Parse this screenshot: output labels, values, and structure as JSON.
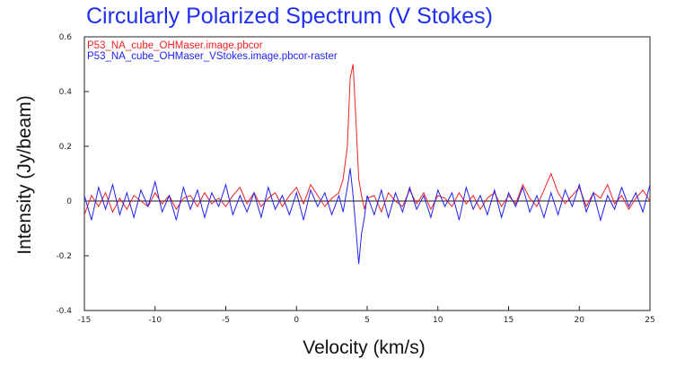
{
  "chart_data": {
    "type": "line",
    "title": "Circularly Polarized Spectrum (V Stokes)",
    "xlabel": "Velocity (km/s)",
    "ylabel": "Intensity (Jy/beam)",
    "xlim": [
      -15,
      25
    ],
    "ylim": [
      -0.4,
      0.6
    ],
    "xticks": [
      -15,
      -10,
      -5,
      0,
      5,
      10,
      15,
      20,
      25
    ],
    "yticks": [
      -0.4,
      -0.2,
      0,
      0.2,
      0.4,
      0.6
    ],
    "ytick_labels": [
      "-0.4",
      "-0.2",
      "0",
      "0.2",
      "0.4",
      "0.6"
    ],
    "grid": false,
    "zero_line": true,
    "legend_position": "top-left",
    "series": [
      {
        "name": "P53_NA_cube_OHMaser.image.pbcor",
        "color": "#ee2222",
        "x": [
          -15.0,
          -14.5,
          -14.0,
          -13.5,
          -13.0,
          -12.5,
          -12.0,
          -11.5,
          -11.0,
          -10.5,
          -10.0,
          -9.5,
          -9.0,
          -8.5,
          -8.0,
          -7.5,
          -7.0,
          -6.5,
          -6.0,
          -5.5,
          -5.0,
          -4.5,
          -4.0,
          -3.5,
          -3.0,
          -2.5,
          -2.0,
          -1.5,
          -1.0,
          -0.5,
          0.0,
          0.5,
          1.0,
          1.5,
          2.0,
          2.5,
          3.0,
          3.3,
          3.6,
          3.8,
          4.0,
          4.2,
          4.4,
          4.6,
          4.8,
          5.0,
          5.5,
          6.0,
          6.5,
          7.0,
          7.5,
          8.0,
          8.5,
          9.0,
          9.5,
          10.0,
          10.5,
          11.0,
          11.5,
          12.0,
          12.5,
          13.0,
          13.5,
          14.0,
          14.5,
          15.0,
          15.5,
          16.0,
          16.5,
          17.0,
          17.5,
          18.0,
          18.5,
          19.0,
          19.5,
          20.0,
          20.5,
          21.0,
          21.5,
          22.0,
          22.5,
          23.0,
          23.5,
          24.0,
          24.5,
          25.0
        ],
        "y": [
          -0.05,
          0.02,
          -0.02,
          0.03,
          -0.04,
          0.01,
          -0.03,
          0.02,
          0.0,
          -0.02,
          0.03,
          -0.01,
          0.02,
          -0.03,
          0.01,
          0.02,
          -0.02,
          0.03,
          -0.01,
          0.01,
          -0.02,
          0.02,
          0.05,
          -0.01,
          0.03,
          -0.02,
          0.01,
          0.03,
          -0.02,
          0.02,
          0.05,
          -0.01,
          0.06,
          0.02,
          -0.02,
          0.01,
          0.03,
          0.08,
          0.2,
          0.45,
          0.5,
          0.3,
          0.08,
          0.02,
          -0.03,
          0.01,
          0.02,
          -0.04,
          0.03,
          0.0,
          -0.02,
          0.04,
          -0.01,
          0.03,
          -0.03,
          0.02,
          0.01,
          -0.02,
          0.03,
          -0.01,
          0.02,
          -0.03,
          0.01,
          0.03,
          -0.02,
          0.02,
          -0.01,
          0.06,
          0.01,
          -0.02,
          0.04,
          0.1,
          0.03,
          -0.01,
          0.02,
          0.05,
          -0.02,
          0.03,
          0.01,
          0.06,
          -0.01,
          0.02,
          -0.03,
          0.01,
          0.04,
          0.0
        ]
      },
      {
        "name": "P53_NA_cube_OHMaser_VStokes.image.pbcor-raster",
        "color": "#2222ee",
        "x": [
          -15.0,
          -14.5,
          -14.0,
          -13.5,
          -13.0,
          -12.5,
          -12.0,
          -11.5,
          -11.0,
          -10.5,
          -10.0,
          -9.5,
          -9.0,
          -8.5,
          -8.0,
          -7.5,
          -7.0,
          -6.5,
          -6.0,
          -5.5,
          -5.0,
          -4.5,
          -4.0,
          -3.5,
          -3.0,
          -2.5,
          -2.0,
          -1.5,
          -1.0,
          -0.5,
          0.0,
          0.5,
          1.0,
          1.5,
          2.0,
          2.5,
          3.0,
          3.3,
          3.6,
          3.8,
          4.0,
          4.2,
          4.4,
          4.6,
          4.8,
          5.0,
          5.5,
          6.0,
          6.5,
          7.0,
          7.5,
          8.0,
          8.5,
          9.0,
          9.5,
          10.0,
          10.5,
          11.0,
          11.5,
          12.0,
          12.5,
          13.0,
          13.5,
          14.0,
          14.5,
          15.0,
          15.5,
          16.0,
          16.5,
          17.0,
          17.5,
          18.0,
          18.5,
          19.0,
          19.5,
          20.0,
          20.5,
          21.0,
          21.5,
          22.0,
          22.5,
          23.0,
          23.5,
          24.0,
          24.5,
          25.0
        ],
        "y": [
          0.02,
          -0.07,
          0.05,
          -0.03,
          0.06,
          -0.05,
          0.03,
          -0.06,
          0.04,
          -0.02,
          0.07,
          -0.04,
          0.02,
          -0.07,
          0.05,
          -0.03,
          0.04,
          -0.06,
          0.03,
          -0.02,
          0.06,
          -0.05,
          0.02,
          -0.04,
          0.03,
          -0.06,
          0.05,
          -0.03,
          0.02,
          -0.05,
          0.03,
          -0.07,
          0.04,
          -0.02,
          0.03,
          -0.05,
          0.02,
          -0.04,
          0.05,
          0.12,
          0.02,
          -0.1,
          -0.23,
          -0.12,
          -0.06,
          0.02,
          -0.05,
          0.04,
          -0.06,
          0.03,
          -0.04,
          0.05,
          -0.03,
          0.02,
          -0.06,
          0.04,
          -0.02,
          0.03,
          -0.07,
          0.05,
          -0.03,
          0.02,
          -0.05,
          0.04,
          -0.06,
          0.03,
          -0.02,
          0.05,
          -0.04,
          0.02,
          -0.06,
          0.03,
          -0.05,
          0.04,
          -0.02,
          0.06,
          -0.04,
          0.03,
          -0.07,
          0.02,
          -0.03,
          0.05,
          -0.02,
          0.03,
          -0.04,
          0.06
        ]
      }
    ]
  }
}
